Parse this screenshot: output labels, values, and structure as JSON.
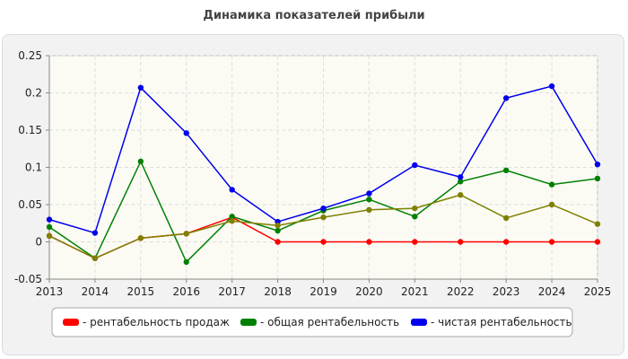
{
  "chart_data": {
    "type": "line",
    "title": "Динамика показателей прибыли",
    "x": [
      "2013",
      "2014",
      "2015",
      "2016",
      "2017",
      "2018",
      "2019",
      "2020",
      "2021",
      "2022",
      "2023",
      "2024",
      "2025"
    ],
    "ylim": [
      -0.05,
      0.25
    ],
    "yticks": [
      "-0.05",
      "0",
      "0.05",
      "0.1",
      "0.15",
      "0.2",
      "0.25"
    ],
    "ytick_values": [
      -0.05,
      0,
      0.05,
      0.1,
      0.15,
      0.2,
      0.25
    ],
    "grid": true,
    "legend_position": "bottom",
    "series": [
      {
        "name": "- рентабельность продаж",
        "color": "#ff0000",
        "values": [
          0.008,
          -0.022,
          0.005,
          0.011,
          0.033,
          0.0,
          0.0,
          0.0,
          0.0,
          0.0,
          0.0,
          0.0,
          0.0
        ]
      },
      {
        "name": "- общая рентабельность",
        "color": "#008000",
        "values": [
          0.02,
          -0.022,
          0.108,
          -0.027,
          0.034,
          0.015,
          0.042,
          0.057,
          0.034,
          0.081,
          0.096,
          0.077,
          0.085
        ]
      },
      {
        "name": "- чистая рентабельность",
        "color": "#0000ee",
        "values": [
          0.03,
          0.012,
          0.207,
          0.146,
          0.07,
          0.027,
          0.045,
          0.065,
          0.103,
          0.087,
          0.193,
          0.209,
          0.104
        ]
      },
      {
        "name": "",
        "color": "#808000",
        "values": [
          0.008,
          -0.022,
          0.005,
          0.011,
          0.028,
          0.022,
          0.033,
          0.043,
          0.045,
          0.063,
          0.032,
          0.05,
          0.024
        ]
      }
    ]
  }
}
